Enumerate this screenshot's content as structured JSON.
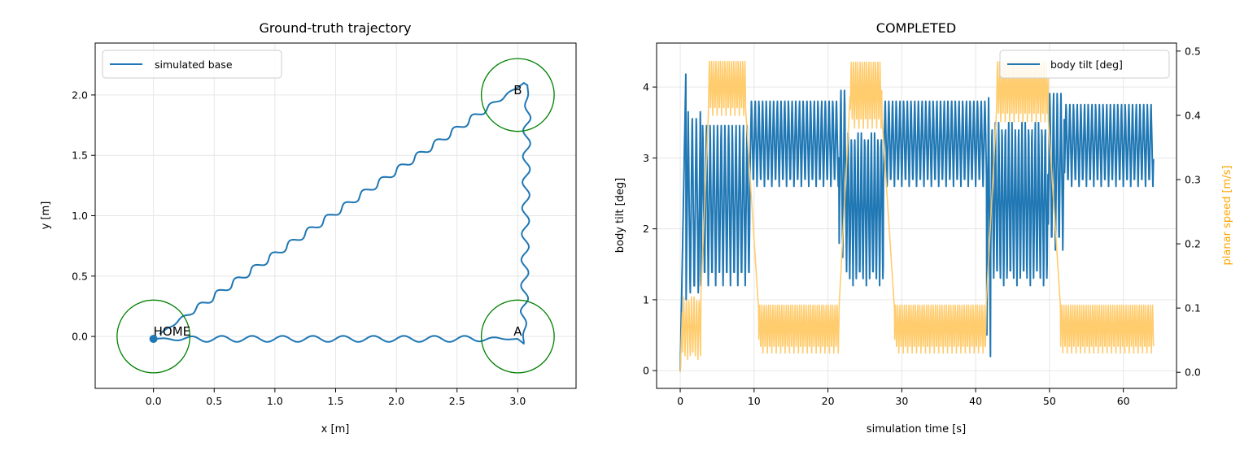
{
  "chart_data": [
    {
      "type": "line",
      "title": "Ground-truth trajectory",
      "xlabel": "x [m]",
      "ylabel": "y [m]",
      "xlim": [
        -0.48,
        3.48
      ],
      "ylim": [
        -0.43,
        2.43
      ],
      "xticks": [
        "0.0",
        "0.5",
        "1.0",
        "1.5",
        "2.0",
        "2.5",
        "3.0"
      ],
      "xtick_values": [
        0,
        0.5,
        1,
        1.5,
        2,
        2.5,
        3
      ],
      "yticks": [
        "0.0",
        "0.5",
        "1.0",
        "1.5",
        "2.0"
      ],
      "ytick_values": [
        0,
        0.5,
        1,
        1.5,
        2
      ],
      "grid": true,
      "legend_position": "top-left",
      "series": [
        {
          "name": "simulated base",
          "color": "#1f77b4",
          "segments": [
            {
              "from": [
                0.0,
                -0.02
              ],
              "to": [
                3.0,
                -0.02
              ],
              "wobble_amp": 0.025,
              "wobble_cycles": 12
            },
            {
              "from": [
                3.05,
                -0.06
              ],
              "to": [
                3.08,
                2.08
              ],
              "wobble_amp": 0.03,
              "wobble_cycles": 10
            },
            {
              "from": [
                3.05,
                2.1
              ],
              "to": [
                0.05,
                0.02
              ],
              "wobble_amp": 0.025,
              "wobble_cycles": 20
            }
          ]
        }
      ],
      "regions": [
        {
          "label": "HOME",
          "x": 0.0,
          "y": 0.0,
          "radius": 0.3,
          "color": "green"
        },
        {
          "label": "A",
          "x": 3.0,
          "y": 0.0,
          "radius": 0.3,
          "color": "green"
        },
        {
          "label": "B",
          "x": 3.0,
          "y": 2.0,
          "radius": 0.3,
          "color": "green"
        }
      ],
      "start_marker": {
        "x": 0.0,
        "y": -0.02,
        "color": "#1f77b4"
      }
    },
    {
      "type": "line",
      "title": "COMPLETED",
      "xlabel": "simulation time [s]",
      "ylabel": "body tilt [deg]",
      "ylabel_right": "planar speed [m/s]",
      "xlim": [
        -3.2,
        67.2
      ],
      "ylim": [
        -0.25,
        4.62
      ],
      "ylim_right": [
        -0.025,
        0.5125
      ],
      "xticks": [
        "0",
        "10",
        "20",
        "30",
        "40",
        "50",
        "60"
      ],
      "xtick_values": [
        0,
        10,
        20,
        30,
        40,
        50,
        60
      ],
      "yticks": [
        "0",
        "1",
        "2",
        "3",
        "4"
      ],
      "ytick_values": [
        0,
        1,
        2,
        3,
        4
      ],
      "yticks_right": [
        "0.0",
        "0.1",
        "0.2",
        "0.3",
        "0.4",
        "0.5"
      ],
      "ytick_values_right": [
        0,
        0.1,
        0.2,
        0.3,
        0.4,
        0.5
      ],
      "grid": true,
      "legend_position": "top-right",
      "series": [
        {
          "name": "body tilt [deg]",
          "axis": "left",
          "color": "#1f77b4",
          "t_end": 64.1,
          "phases": [
            {
              "t0": 0.0,
              "t1": 0.8,
              "kind": "ramp",
              "from": 0.0,
              "to": 4.4
            },
            {
              "t0": 0.8,
              "t1": 2.8,
              "kind": "osc",
              "low": 1.0,
              "high": 3.7,
              "period": 0.55
            },
            {
              "t0": 2.8,
              "t1": 9.4,
              "kind": "osc",
              "low": 1.2,
              "high": 3.55,
              "period": 0.5
            },
            {
              "t0": 9.4,
              "t1": 21.5,
              "kind": "osc",
              "low": 2.6,
              "high": 3.85,
              "period": 0.5
            },
            {
              "t0": 21.5,
              "t1": 22.5,
              "kind": "osc",
              "low": 1.6,
              "high": 4.05,
              "period": 0.5
            },
            {
              "t0": 22.5,
              "t1": 27.5,
              "kind": "osc",
              "low": 1.2,
              "high": 3.4,
              "period": 0.45
            },
            {
              "t0": 27.5,
              "t1": 41.5,
              "kind": "osc",
              "low": 2.6,
              "high": 3.85,
              "period": 0.5
            },
            {
              "t0": 41.5,
              "t1": 42.0,
              "kind": "osc",
              "low": 0.2,
              "high": 4.0,
              "period": 0.5
            },
            {
              "t0": 42.0,
              "t1": 49.8,
              "kind": "osc",
              "low": 1.2,
              "high": 3.55,
              "period": 0.45
            },
            {
              "t0": 49.8,
              "t1": 52.0,
              "kind": "osc",
              "low": 1.7,
              "high": 4.0,
              "period": 0.5
            },
            {
              "t0": 52.0,
              "t1": 64.1,
              "kind": "osc",
              "low": 2.6,
              "high": 3.8,
              "period": 0.5
            }
          ]
        },
        {
          "name": "planar speed",
          "axis": "right",
          "color": "#ffc966",
          "t_end": 64.1,
          "phases": [
            {
              "t0": 0.0,
              "t1": 0.3,
              "kind": "ramp",
              "from": 0.0,
              "to": 0.1
            },
            {
              "t0": 0.3,
              "t1": 2.8,
              "kind": "osc",
              "low": 0.02,
              "high": 0.12,
              "period": 0.35
            },
            {
              "t0": 2.8,
              "t1": 3.8,
              "kind": "ramp",
              "from": 0.12,
              "to": 0.4
            },
            {
              "t0": 3.8,
              "t1": 8.8,
              "kind": "osc",
              "low": 0.4,
              "high": 0.49,
              "period": 0.3
            },
            {
              "t0": 8.8,
              "t1": 10.6,
              "kind": "ramp",
              "from": 0.42,
              "to": 0.1
            },
            {
              "t0": 10.6,
              "t1": 21.5,
              "kind": "osc",
              "low": 0.03,
              "high": 0.11,
              "period": 0.3
            },
            {
              "t0": 21.5,
              "t1": 23.0,
              "kind": "ramp",
              "from": 0.1,
              "to": 0.43
            },
            {
              "t0": 23.0,
              "t1": 27.3,
              "kind": "osc",
              "low": 0.38,
              "high": 0.49,
              "period": 0.3
            },
            {
              "t0": 27.3,
              "t1": 29.0,
              "kind": "ramp",
              "from": 0.4,
              "to": 0.1
            },
            {
              "t0": 29.0,
              "t1": 41.4,
              "kind": "osc",
              "low": 0.03,
              "high": 0.11,
              "period": 0.3
            },
            {
              "t0": 41.4,
              "t1": 42.8,
              "kind": "ramp",
              "from": 0.1,
              "to": 0.4
            },
            {
              "t0": 42.8,
              "t1": 49.8,
              "kind": "osc",
              "low": 0.39,
              "high": 0.49,
              "period": 0.3
            },
            {
              "t0": 49.8,
              "t1": 51.5,
              "kind": "ramp",
              "from": 0.4,
              "to": 0.1
            },
            {
              "t0": 51.5,
              "t1": 64.1,
              "kind": "osc",
              "low": 0.03,
              "high": 0.11,
              "period": 0.3
            }
          ]
        }
      ]
    }
  ]
}
